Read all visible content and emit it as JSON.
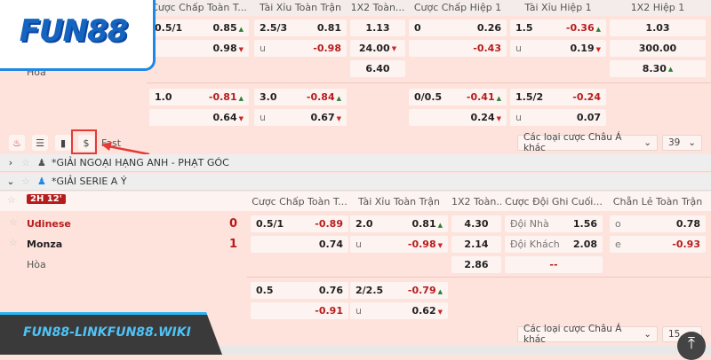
{
  "brand": {
    "logo": "FUN88",
    "watermark": "FUN88-LINKFUN88.WIKI"
  },
  "top": {
    "headers": [
      "Cược Chấp Toàn T...",
      "Tài Xỉu Toàn Trận",
      "1X2 Toàn...",
      "Cược Chấp Hiệp 1",
      "Tài Xỉu Hiệp 1",
      "1X2 Hiệp 1"
    ],
    "draw_label": "Hòa",
    "groups": [
      [
        [
          {
            "l": "0.5/1",
            "r": "0.85",
            "a": "up"
          },
          {
            "l": "",
            "r": "0.98",
            "a": "down"
          }
        ],
        [
          {
            "l": "2.5/3",
            "r": "0.81"
          },
          {
            "l": "u",
            "r": "-0.98"
          }
        ],
        [
          {
            "c": "1.13"
          },
          {
            "c": "24.00",
            "a": "down"
          },
          {
            "c": "6.40"
          }
        ],
        [
          {
            "l": "0",
            "r": "0.26"
          },
          {
            "l": "",
            "r": "-0.43"
          }
        ],
        [
          {
            "l": "1.5",
            "r": "-0.36",
            "a": "up"
          },
          {
            "l": "u",
            "r": "0.19",
            "a": "down"
          }
        ],
        [
          {
            "c": "1.03"
          },
          {
            "c": "300.00"
          },
          {
            "c": "8.30",
            "a": "up"
          }
        ]
      ],
      [
        [
          {
            "l": "1.0",
            "r": "-0.81",
            "a": "up"
          },
          {
            "l": "",
            "r": "0.64",
            "a": "down"
          }
        ],
        [
          {
            "l": "3.0",
            "r": "-0.84",
            "a": "up"
          },
          {
            "l": "u",
            "r": "0.67",
            "a": "down"
          }
        ],
        [],
        [
          {
            "l": "0/0.5",
            "r": "-0.41",
            "a": "up"
          },
          {
            "l": "",
            "r": "0.24",
            "a": "down"
          }
        ],
        [
          {
            "l": "1.5/2",
            "r": "-0.24"
          },
          {
            "l": "u",
            "r": "0.07"
          }
        ],
        []
      ]
    ]
  },
  "toolbar": {
    "fast_label": "Fast",
    "bet_type_select": "Các loại cược Châu Á khác",
    "count_select": "39"
  },
  "leagues": [
    {
      "name": "*GIẢI NGOẠI HẠNG ANH - PHẠT GÓC",
      "expanded": false
    },
    {
      "name": "*GIẢI SERIE A Ý",
      "expanded": true
    }
  ],
  "match": {
    "time_badge": "2H 12'",
    "home": {
      "name": "Udinese",
      "score": "0"
    },
    "away": {
      "name": "Monza",
      "score": "1"
    },
    "draw_label": "Hòa",
    "headers": [
      "Cược Chấp Toàn T...",
      "Tài Xỉu Toàn Trận",
      "1X2 Toàn...",
      "Cược Đội Ghi Cuối...",
      "Chẵn Lẻ Toàn Trận"
    ],
    "groups": [
      [
        [
          {
            "l": "0.5/1",
            "r": "-0.89"
          },
          {
            "l": "",
            "r": "0.74"
          }
        ],
        [
          {
            "l": "2.0",
            "r": "0.81",
            "a": "up"
          },
          {
            "l": "u",
            "r": "-0.98",
            "a": "down"
          }
        ],
        [
          {
            "c": "4.30"
          },
          {
            "c": "2.14"
          },
          {
            "c": "2.86"
          }
        ],
        [
          {
            "l": "Đội Nhà",
            "r": "1.56"
          },
          {
            "l": "Đội Khách",
            "r": "2.08"
          },
          {
            "c": "--"
          }
        ],
        [
          {
            "l": "o",
            "r": "0.78"
          },
          {
            "l": "e",
            "r": "-0.93"
          }
        ]
      ],
      [
        [
          {
            "l": "0.5",
            "r": "0.76"
          },
          {
            "l": "",
            "r": "-0.91"
          }
        ],
        [
          {
            "l": "2/2.5",
            "r": "-0.79",
            "a": "up"
          },
          {
            "l": "u",
            "r": "0.62",
            "a": "down"
          }
        ],
        [],
        [],
        []
      ]
    ],
    "bet_type_select": "Các loại cược Châu Á khác",
    "count_select": "15"
  },
  "colors": {
    "accent_red": "#b71c1c",
    "highlight_box": "#e53935",
    "logo_blue": "#1e88e5",
    "bg": "#fde3dc"
  }
}
